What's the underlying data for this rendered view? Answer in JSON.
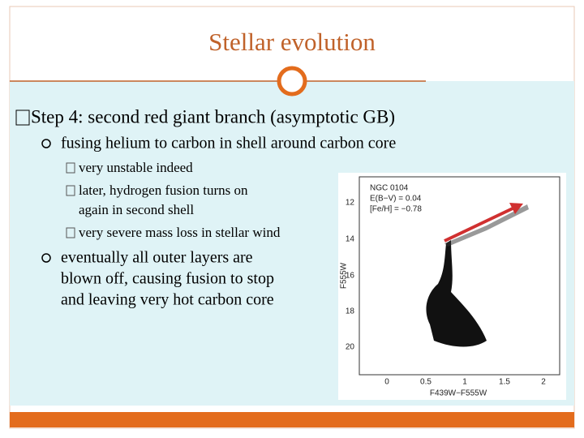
{
  "header": {
    "title": "Stellar evolution"
  },
  "body": {
    "heading": "Step 4: second red giant branch (asymptotic GB)",
    "bullets": [
      {
        "text": "fusing helium to carbon in shell around carbon core",
        "subbullets": [
          {
            "lines": [
              "very unstable indeed"
            ]
          },
          {
            "lines": [
              "later, hydrogen fusion turns on",
              "again in second shell"
            ]
          },
          {
            "lines": [
              "very severe mass loss in stellar wind"
            ]
          }
        ]
      },
      {
        "lines": [
          "eventually all outer layers are",
          "blown off, causing fusion to stop",
          "and leaving very hot carbon core"
        ]
      }
    ]
  },
  "figure": {
    "annotations": [
      "NGC 0104",
      "E(B−V) = 0.04",
      "[Fe/H] = −0.78"
    ],
    "x_label": "F439W−F555W",
    "y_label": "F555W",
    "x_tick_labels": [
      "0",
      "0.5",
      "1",
      "1.5",
      "2"
    ],
    "y_tick_labels": [
      "12",
      "14",
      "16",
      "18",
      "20"
    ]
  }
}
